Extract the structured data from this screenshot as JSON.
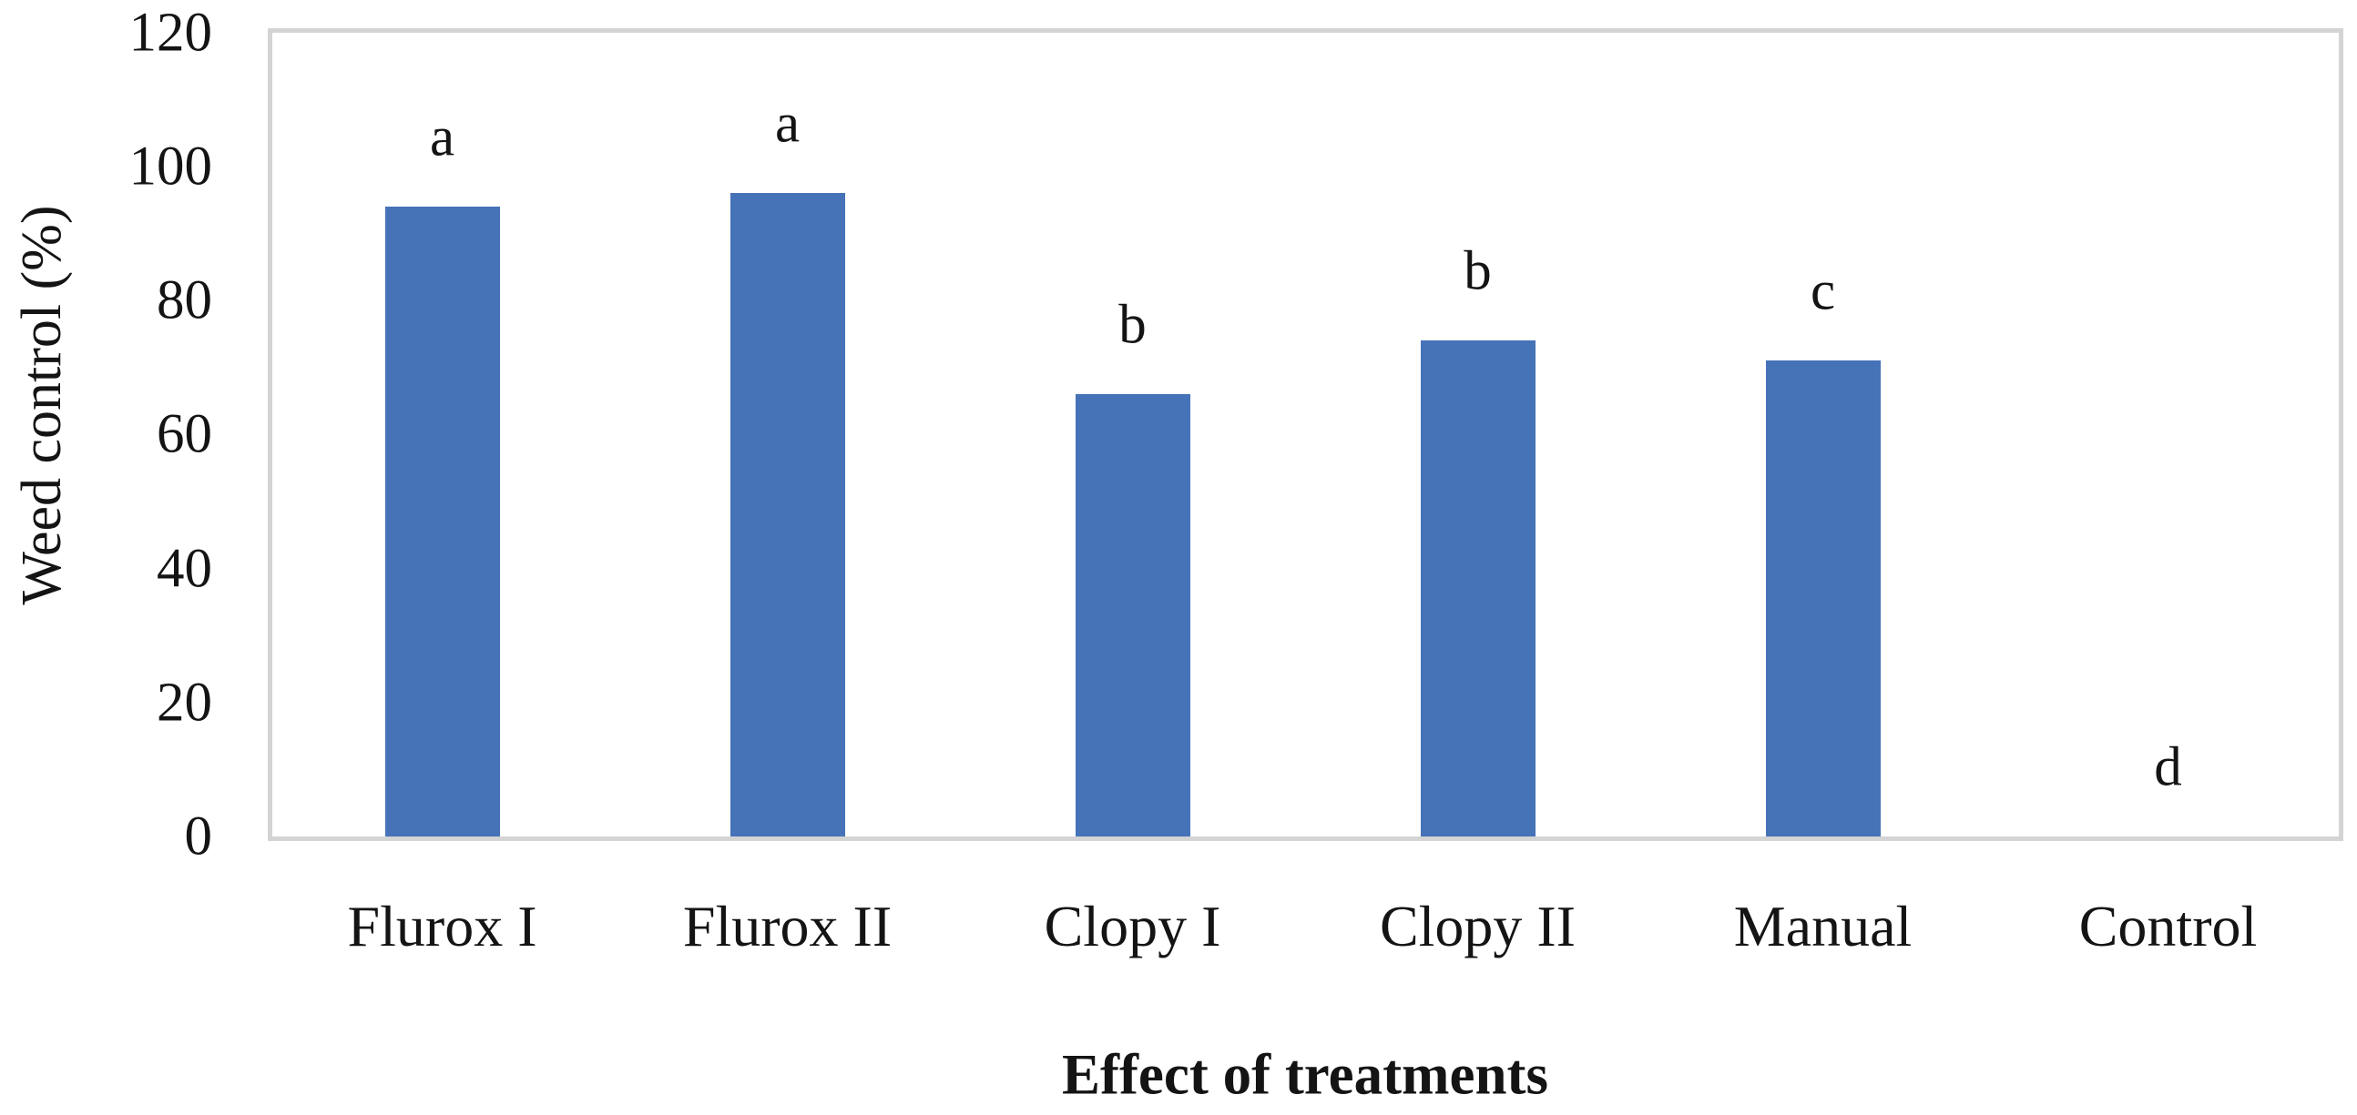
{
  "chart_data": {
    "type": "bar",
    "title": "",
    "xlabel": "Effect of treatments",
    "ylabel": "Weed control (%)",
    "categories": [
      "Flurox I",
      "Flurox II",
      "Clopy I",
      "Clopy II",
      "Manual",
      "Control"
    ],
    "values": [
      94,
      96,
      66,
      74,
      71,
      0
    ],
    "significance_letters": [
      "a",
      "a",
      "b",
      "b",
      "c",
      "d"
    ],
    "ylim": [
      0,
      120
    ],
    "yticks": [
      0,
      20,
      40,
      60,
      80,
      100,
      120
    ],
    "grid": false,
    "legend": "none",
    "bar_color": "#4673B8",
    "border_color": "#D4D4D4",
    "text_color": "#141414"
  }
}
